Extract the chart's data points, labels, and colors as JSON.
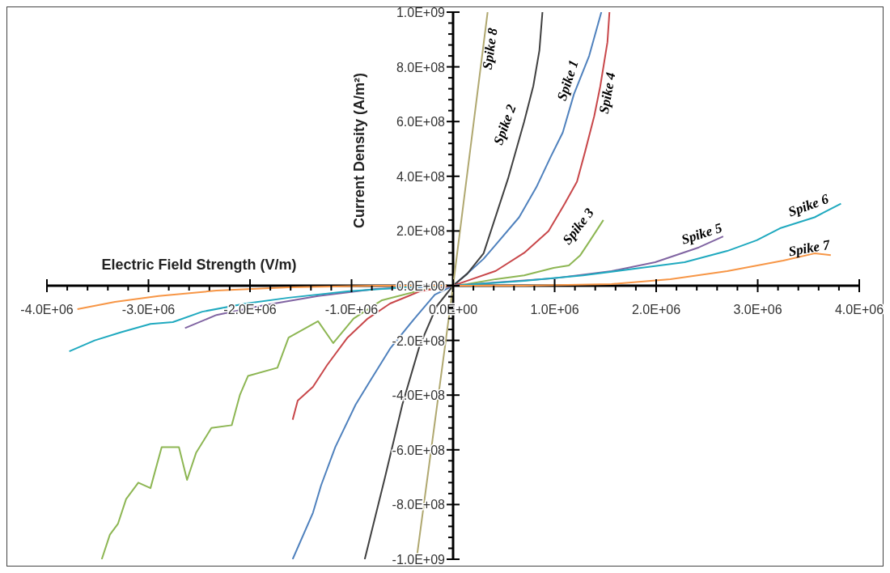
{
  "chart_data": {
    "type": "line",
    "xlabel": "Electric Field Strength (V/m)",
    "ylabel": "Current Density (A/m²)",
    "xlim": [
      -4000000.0,
      4000000.0
    ],
    "ylim": [
      -1000000000.0,
      1000000000.0
    ],
    "xticks": [
      {
        "value": -4000000.0,
        "label": "-4.0E+06"
      },
      {
        "value": -3000000.0,
        "label": "-3.0E+06"
      },
      {
        "value": -2000000.0,
        "label": "-2.0E+06"
      },
      {
        "value": -1000000.0,
        "label": "-1.0E+06"
      },
      {
        "value": 0,
        "label": "0.0E+00"
      },
      {
        "value": 1000000.0,
        "label": "1.0E+06"
      },
      {
        "value": 2000000.0,
        "label": "2.0E+06"
      },
      {
        "value": 3000000.0,
        "label": "3.0E+06"
      },
      {
        "value": 4000000.0,
        "label": "4.0E+06"
      }
    ],
    "yticks": [
      {
        "value": -1000000000.0,
        "label": "-1.0E+09"
      },
      {
        "value": -800000000.0,
        "label": "-8.0E+08"
      },
      {
        "value": -600000000.0,
        "label": "-6.0E+08"
      },
      {
        "value": -400000000.0,
        "label": "-4.0E+08"
      },
      {
        "value": -200000000.0,
        "label": "-2.0E+08"
      },
      {
        "value": 0,
        "label": "0.0E+00"
      },
      {
        "value": 200000000.0,
        "label": "2.0E+08"
      },
      {
        "value": 400000000.0,
        "label": "4.0E+08"
      },
      {
        "value": 600000000.0,
        "label": "6.0E+08"
      },
      {
        "value": 800000000.0,
        "label": "8.0E+08"
      },
      {
        "value": 1000000000.0,
        "label": "1.0E+09"
      }
    ],
    "marker": "none",
    "line_style": "solid",
    "series": [
      {
        "name": "Spike 1",
        "color": "#4f81bd",
        "x": [
          -1580000.0,
          -1380000.0,
          -1300000.0,
          -1160000.0,
          -960000.0,
          -820000.0,
          -620000.0,
          -380000.0,
          -180000.0,
          0,
          140000.0,
          300000.0,
          420000.0,
          650000.0,
          820000.0,
          960000.0,
          1080000.0,
          1190000.0,
          1340000.0,
          1460000.0
        ],
        "values": [
          -1000000000.0,
          -830000000.0,
          -730000000.0,
          -590000000.0,
          -435000000.0,
          -350000000.0,
          -230000000.0,
          -120000000.0,
          -33000000.0,
          0,
          44000000.0,
          98000000.0,
          150000000.0,
          250000000.0,
          360000000.0,
          470000000.0,
          560000000.0,
          700000000.0,
          840000000.0,
          1000000000.0
        ]
      },
      {
        "name": "Spike 2",
        "color": "#404040",
        "x": [
          -870000.0,
          -670000.0,
          -500000.0,
          -330000.0,
          -160000.0,
          0,
          140000.0,
          300000.0,
          540000.0,
          700000.0,
          790000.0,
          850000.0,
          880000.0
        ],
        "values": [
          -1000000000.0,
          -700000000.0,
          -435000000.0,
          -220000000.0,
          -74000000.0,
          0,
          44000000.0,
          118000000.0,
          390000000.0,
          600000000.0,
          730000000.0,
          860000000.0,
          1000000000.0
        ]
      },
      {
        "name": "Spike 3",
        "color": "#8db653",
        "x": [
          -3460000.0,
          -3380000.0,
          -3300000.0,
          -3220000.0,
          -3100000.0,
          -2980000.0,
          -2870000.0,
          -2700000.0,
          -2620000.0,
          -2530000.0,
          -2380000.0,
          -2180000.0,
          -2100000.0,
          -2020000.0,
          -1730000.0,
          -1620000.0,
          -1330000.0,
          -1180000.0,
          -980000.0,
          -700000.0,
          -330000.0,
          0,
          140000.0,
          420000.0,
          700000.0,
          990000.0,
          1140000.0,
          1250000.0,
          1340000.0,
          1480000.0
        ],
        "values": [
          -1000000000.0,
          -910000000.0,
          -870000000.0,
          -780000000.0,
          -720000000.0,
          -740000000.0,
          -590000000.0,
          -590000000.0,
          -710000000.0,
          -610000000.0,
          -520000000.0,
          -510000000.0,
          -400000000.0,
          -330000000.0,
          -300000000.0,
          -190000000.0,
          -130000000.0,
          -210000000.0,
          -120000000.0,
          -53000000.0,
          -18000000.0,
          0,
          6000000.0,
          24000000.0,
          38000000.0,
          65000000.0,
          74000000.0,
          110000000.0,
          160000000.0,
          240000000.0
        ]
      },
      {
        "name": "Spike 4",
        "color": "#c8474a",
        "x": [
          -1580000.0,
          -1530000.0,
          -1380000.0,
          -1240000.0,
          -1040000.0,
          -840000.0,
          -620000.0,
          -330000.0,
          0,
          140000.0,
          420000.0,
          700000.0,
          940000.0,
          1100000.0,
          1220000.0,
          1300000.0,
          1390000.0,
          1450000.0,
          1520000.0,
          1540000.0
        ],
        "values": [
          -490000000.0,
          -420000000.0,
          -370000000.0,
          -290000000.0,
          -190000000.0,
          -120000000.0,
          -65000000.0,
          -21000000.0,
          0,
          18000000.0,
          54000000.0,
          120000000.0,
          200000000.0,
          300000000.0,
          380000000.0,
          490000000.0,
          620000000.0,
          730000000.0,
          890000000.0,
          1000000000.0
        ]
      },
      {
        "name": "Spike 5",
        "color": "#8064a2",
        "x": [
          -2640000.0,
          -2330000.0,
          -1900000.0,
          -1330000.0,
          -760000.0,
          0,
          420000.0,
          990000.0,
          1560000.0,
          1990000.0,
          2420000.0,
          2660000.0
        ],
        "values": [
          -155000000.0,
          -107000000.0,
          -74000000.0,
          -38000000.0,
          -12000000.0,
          0,
          12000000.0,
          27000000.0,
          53000000.0,
          86000000.0,
          140000000.0,
          180000000.0
        ]
      },
      {
        "name": "Spike 6",
        "color": "#1fa9bf",
        "x": [
          -3780000.0,
          -3530000.0,
          -3270000.0,
          -2980000.0,
          -2760000.0,
          -2470000.0,
          -2040000.0,
          -1620000.0,
          -1040000.0,
          -470000.0,
          0,
          700000.0,
          1280000.0,
          1850000.0,
          2280000.0,
          2700000.0,
          2990000.0,
          3220000.0,
          3560000.0,
          3820000.0
        ],
        "values": [
          -240000000.0,
          -200000000.0,
          -170000000.0,
          -140000000.0,
          -133000000.0,
          -95000000.0,
          -65000000.0,
          -44000000.0,
          -21000000.0,
          -6000000.0,
          0,
          18000000.0,
          38000000.0,
          65000000.0,
          86000000.0,
          127000000.0,
          166000000.0,
          210000000.0,
          250000000.0,
          300000000.0
        ]
      },
      {
        "name": "Spike 7",
        "color": "#f79646",
        "x": [
          -3700000.0,
          -3330000.0,
          -2900000.0,
          -2330000.0,
          -1620000.0,
          -760000.0,
          0,
          700000.0,
          1560000.0,
          2140000.0,
          2700000.0,
          3250000.0,
          3560000.0,
          3720000.0
        ],
        "values": [
          -86000000.0,
          -59000000.0,
          -38000000.0,
          -18000000.0,
          -6000000.0,
          0,
          0,
          0,
          6000000.0,
          24000000.0,
          53000000.0,
          92000000.0,
          118000000.0,
          112000000.0
        ]
      },
      {
        "name": "Spike 8",
        "color": "#b0a870",
        "x": [
          -360000.0,
          0,
          340000.0
        ],
        "values": [
          -1000000000.0,
          0,
          1000000000.0
        ]
      }
    ]
  }
}
